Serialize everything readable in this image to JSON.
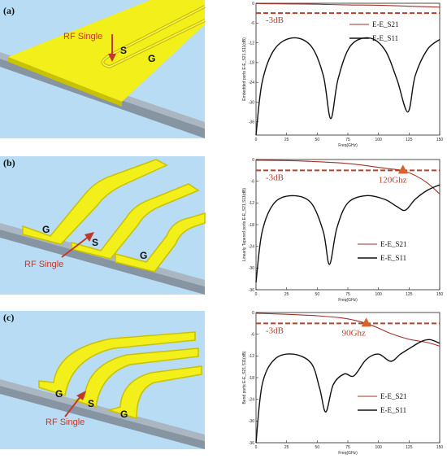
{
  "panels": [
    {
      "label": "(a)",
      "rf_label": "RF Single",
      "pad_labels": [
        "S",
        "G"
      ]
    },
    {
      "label": "(b)",
      "rf_label": "RF Single",
      "pad_labels": [
        "G",
        "S",
        "G"
      ]
    },
    {
      "label": "(c)",
      "rf_label": "RF Single",
      "pad_labels": [
        "G",
        "S",
        "G"
      ]
    }
  ],
  "colors": {
    "s21": "#a0322a",
    "s11": "#111111",
    "threshold": "#b5412f",
    "marker": "#d9622b",
    "substrate_bg": "#b7dcf3",
    "metal": "#f2ef1a",
    "metal_dark": "#c9c200",
    "base": "#9aa6b2"
  },
  "chart_data": [
    {
      "type": "line",
      "ylabel": "Embedded ports E-E_S21,S11(dB)",
      "xlabel": "Freq(GHz)",
      "xlim": [
        0,
        150
      ],
      "ylim": [
        -40,
        0
      ],
      "xticks": [
        0,
        25,
        50,
        75,
        100,
        125,
        150
      ],
      "yticks": [
        0,
        -6,
        -12,
        -18,
        -24,
        -30,
        -36
      ],
      "threshold": {
        "value": -3,
        "label": "-3dB"
      },
      "series": [
        {
          "name": "E-E_S21",
          "x": [
            0,
            25,
            50,
            75,
            100,
            125,
            150
          ],
          "y": [
            -0.1,
            -0.2,
            -0.3,
            -0.5,
            -0.6,
            -0.9,
            -1.2
          ]
        },
        {
          "name": "E-E_S11",
          "x": [
            0,
            5,
            15,
            30,
            45,
            55,
            61,
            67,
            77,
            92,
            105,
            115,
            124,
            130,
            140,
            150
          ],
          "y": [
            -40,
            -24,
            -14,
            -10.5,
            -13,
            -22,
            -35,
            -23,
            -13,
            -10.5,
            -14,
            -23,
            -33,
            -22,
            -14,
            -11
          ]
        }
      ]
    },
    {
      "type": "line",
      "ylabel": "Linearly Tapered ports E-E_S21,S11(dB)",
      "xlabel": "Freq(GHz)",
      "xlim": [
        0,
        150
      ],
      "ylim": [
        -36,
        0
      ],
      "xticks": [
        0,
        25,
        50,
        75,
        100,
        125,
        150
      ],
      "yticks": [
        0,
        -6,
        -12,
        -18,
        -24,
        -30,
        -36
      ],
      "threshold": {
        "value": -3,
        "label": "-3dB"
      },
      "marker": {
        "x": 120,
        "y": -3,
        "label": "120Ghz"
      },
      "series": [
        {
          "name": "E-E_S21",
          "x": [
            0,
            25,
            50,
            75,
            90,
            105,
            115,
            120,
            130,
            140,
            150
          ],
          "y": [
            -0.2,
            -0.3,
            -0.6,
            -1.1,
            -1.7,
            -2.4,
            -2.8,
            -3.1,
            -4.4,
            -6.5,
            -9.5
          ]
        },
        {
          "name": "E-E_S11",
          "x": [
            0,
            5,
            15,
            30,
            45,
            55,
            60,
            66,
            75,
            90,
            105,
            115,
            122,
            130,
            140,
            150
          ],
          "y": [
            -34,
            -20,
            -12,
            -10,
            -12,
            -20,
            -29,
            -19,
            -12,
            -10,
            -11,
            -13,
            -14,
            -11,
            -8.5,
            -7
          ]
        }
      ]
    },
    {
      "type": "line",
      "ylabel": "Bend ports E-E_S21,S11(dB)",
      "xlabel": "Freq(GHz)",
      "xlim": [
        0,
        150
      ],
      "ylim": [
        -36,
        0
      ],
      "xticks": [
        0,
        25,
        50,
        75,
        100,
        125,
        150
      ],
      "yticks": [
        0,
        -6,
        -12,
        -18,
        -24,
        -30,
        -36
      ],
      "threshold": {
        "value": -3,
        "label": "-3dB"
      },
      "marker": {
        "x": 90,
        "y": -3,
        "label": "90Ghz"
      },
      "series": [
        {
          "name": "E-E_S21",
          "x": [
            0,
            25,
            50,
            70,
            80,
            90,
            100,
            110,
            125,
            140,
            150
          ],
          "y": [
            -0.2,
            -0.5,
            -0.9,
            -1.5,
            -2.1,
            -3.0,
            -4.3,
            -5.8,
            -7.4,
            -8.3,
            -9.3
          ]
        },
        {
          "name": "E-E_S11",
          "x": [
            0,
            5,
            15,
            30,
            45,
            52,
            57,
            63,
            72,
            80,
            90,
            100,
            110,
            118,
            125,
            135,
            142,
            150
          ],
          "y": [
            -36,
            -20,
            -13,
            -11.5,
            -14,
            -21,
            -27.5,
            -20,
            -17,
            -17.5,
            -13,
            -11.5,
            -13.5,
            -11.5,
            -10,
            -8,
            -7.5,
            -8.5
          ]
        }
      ]
    }
  ]
}
